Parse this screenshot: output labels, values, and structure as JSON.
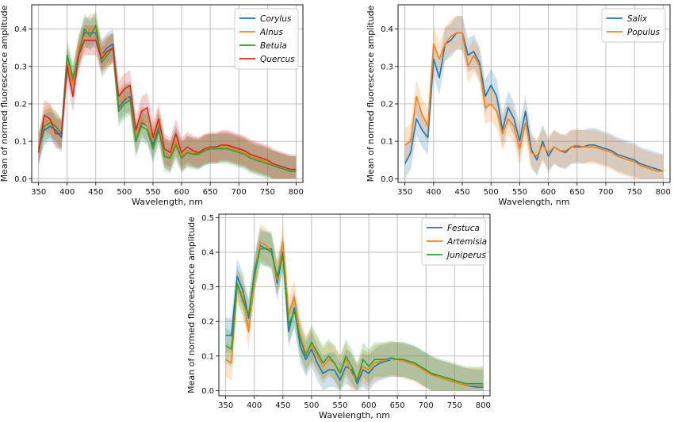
{
  "chart_data": [
    {
      "type": "line",
      "xlabel": "Wavelength, nm",
      "ylabel": "Mean of normed fluorescence amplitude",
      "xlim": [
        338,
        812
      ],
      "ylim": [
        -0.01,
        0.465
      ],
      "xticks": [
        350,
        400,
        450,
        500,
        550,
        600,
        650,
        700,
        750,
        800
      ],
      "yticks": [
        0.0,
        0.1,
        0.2,
        0.3,
        0.4
      ],
      "grid": true,
      "legend_position": "upper right",
      "x": [
        350,
        360,
        370,
        380,
        390,
        400,
        410,
        420,
        430,
        440,
        450,
        460,
        470,
        480,
        490,
        500,
        510,
        520,
        530,
        540,
        550,
        560,
        570,
        580,
        590,
        600,
        610,
        620,
        630,
        640,
        650,
        660,
        670,
        680,
        690,
        700,
        710,
        720,
        730,
        740,
        750,
        760,
        770,
        780,
        790,
        800
      ],
      "series": [
        {
          "name": "Corylus",
          "color": "#1f77b4",
          "values": [
            0.08,
            0.13,
            0.14,
            0.13,
            0.11,
            0.31,
            0.26,
            0.34,
            0.39,
            0.39,
            0.39,
            0.33,
            0.35,
            0.36,
            0.19,
            0.21,
            0.22,
            0.1,
            0.15,
            0.14,
            0.09,
            0.14,
            0.07,
            0.06,
            0.1,
            0.06,
            0.075,
            0.07,
            0.065,
            0.075,
            0.08,
            0.08,
            0.085,
            0.085,
            0.08,
            0.075,
            0.07,
            0.06,
            0.055,
            0.05,
            0.045,
            0.035,
            0.03,
            0.025,
            0.02,
            0.02
          ],
          "band": 0.04
        },
        {
          "name": "Alnus",
          "color": "#ff7f0e",
          "values": [
            0.08,
            0.15,
            0.16,
            0.14,
            0.12,
            0.32,
            0.25,
            0.35,
            0.38,
            0.4,
            0.4,
            0.33,
            0.34,
            0.35,
            0.2,
            0.22,
            0.21,
            0.11,
            0.16,
            0.14,
            0.1,
            0.15,
            0.07,
            0.06,
            0.1,
            0.06,
            0.075,
            0.07,
            0.07,
            0.08,
            0.08,
            0.08,
            0.085,
            0.085,
            0.08,
            0.075,
            0.07,
            0.06,
            0.055,
            0.05,
            0.045,
            0.035,
            0.03,
            0.025,
            0.02,
            0.02
          ],
          "band": 0.04
        },
        {
          "name": "Betula",
          "color": "#2ca02c",
          "values": [
            0.08,
            0.14,
            0.15,
            0.14,
            0.12,
            0.33,
            0.27,
            0.33,
            0.4,
            0.38,
            0.41,
            0.31,
            0.33,
            0.35,
            0.18,
            0.2,
            0.21,
            0.1,
            0.14,
            0.13,
            0.08,
            0.13,
            0.06,
            0.055,
            0.09,
            0.055,
            0.07,
            0.065,
            0.065,
            0.075,
            0.08,
            0.08,
            0.08,
            0.08,
            0.075,
            0.07,
            0.065,
            0.055,
            0.05,
            0.045,
            0.04,
            0.035,
            0.03,
            0.025,
            0.02,
            0.02
          ],
          "band": 0.04
        },
        {
          "name": "Quercus",
          "color": "#d62728",
          "values": [
            0.07,
            0.17,
            0.16,
            0.12,
            0.12,
            0.3,
            0.22,
            0.33,
            0.37,
            0.37,
            0.37,
            0.32,
            0.34,
            0.35,
            0.22,
            0.24,
            0.25,
            0.13,
            0.18,
            0.19,
            0.11,
            0.16,
            0.08,
            0.07,
            0.12,
            0.07,
            0.085,
            0.075,
            0.07,
            0.08,
            0.085,
            0.085,
            0.09,
            0.09,
            0.085,
            0.08,
            0.075,
            0.065,
            0.06,
            0.055,
            0.05,
            0.04,
            0.035,
            0.03,
            0.025,
            0.025
          ],
          "band": 0.04
        }
      ]
    },
    {
      "type": "line",
      "xlabel": "Wavelength, nm",
      "ylabel": "Mean of normed fluorescence amplitude",
      "xlim": [
        338,
        812
      ],
      "ylim": [
        -0.01,
        0.465
      ],
      "xticks": [
        350,
        400,
        450,
        500,
        550,
        600,
        650,
        700,
        750,
        800
      ],
      "yticks": [
        0.0,
        0.1,
        0.2,
        0.3,
        0.4
      ],
      "grid": true,
      "legend_position": "upper right",
      "x": [
        350,
        360,
        370,
        380,
        390,
        400,
        410,
        420,
        430,
        440,
        450,
        460,
        470,
        480,
        490,
        500,
        510,
        520,
        530,
        540,
        550,
        560,
        570,
        580,
        590,
        600,
        610,
        620,
        630,
        640,
        650,
        660,
        670,
        680,
        690,
        700,
        710,
        720,
        730,
        740,
        750,
        760,
        770,
        780,
        790,
        800
      ],
      "series": [
        {
          "name": "Salix",
          "color": "#1f77b4",
          "values": [
            0.04,
            0.07,
            0.16,
            0.13,
            0.11,
            0.32,
            0.27,
            0.36,
            0.37,
            0.39,
            0.39,
            0.33,
            0.34,
            0.31,
            0.22,
            0.25,
            0.22,
            0.13,
            0.19,
            0.16,
            0.1,
            0.18,
            0.08,
            0.05,
            0.1,
            0.06,
            0.085,
            0.075,
            0.07,
            0.085,
            0.085,
            0.085,
            0.09,
            0.09,
            0.085,
            0.08,
            0.075,
            0.065,
            0.06,
            0.055,
            0.05,
            0.04,
            0.035,
            0.03,
            0.025,
            0.02
          ],
          "band": 0.045
        },
        {
          "name": "Populus",
          "color": "#ff7f0e",
          "values": [
            0.09,
            0.1,
            0.22,
            0.17,
            0.14,
            0.36,
            0.32,
            0.36,
            0.38,
            0.39,
            0.39,
            0.3,
            0.33,
            0.3,
            0.19,
            0.2,
            0.18,
            0.12,
            0.16,
            0.14,
            0.08,
            0.15,
            0.07,
            0.06,
            0.09,
            0.07,
            0.085,
            0.075,
            0.075,
            0.085,
            0.09,
            0.085,
            0.085,
            0.085,
            0.08,
            0.075,
            0.07,
            0.06,
            0.055,
            0.05,
            0.045,
            0.035,
            0.03,
            0.025,
            0.02,
            0.02
          ],
          "band": 0.045
        }
      ]
    },
    {
      "type": "line",
      "xlabel": "Wavelength, nm",
      "ylabel": "Mean of normed fluorescence amplitude",
      "xlim": [
        338,
        812
      ],
      "ylim": [
        -0.015,
        0.51
      ],
      "xticks": [
        350,
        400,
        450,
        500,
        550,
        600,
        650,
        700,
        750,
        800
      ],
      "yticks": [
        0.0,
        0.1,
        0.2,
        0.3,
        0.4,
        0.5
      ],
      "grid": true,
      "legend_position": "upper right",
      "x": [
        350,
        360,
        370,
        380,
        390,
        400,
        410,
        420,
        430,
        440,
        450,
        460,
        470,
        480,
        490,
        500,
        510,
        520,
        530,
        540,
        550,
        560,
        570,
        580,
        590,
        600,
        610,
        620,
        630,
        640,
        650,
        660,
        670,
        680,
        690,
        700,
        710,
        720,
        730,
        740,
        750,
        760,
        770,
        780,
        790,
        800
      ],
      "series": [
        {
          "name": "Festuca",
          "color": "#1f77b4",
          "values": [
            0.16,
            0.16,
            0.33,
            0.29,
            0.21,
            0.34,
            0.42,
            0.41,
            0.41,
            0.31,
            0.4,
            0.17,
            0.24,
            0.13,
            0.09,
            0.12,
            0.08,
            0.05,
            0.06,
            0.06,
            0.03,
            0.07,
            0.06,
            0.02,
            0.06,
            0.05,
            0.07,
            0.08,
            0.085,
            0.09,
            0.09,
            0.09,
            0.085,
            0.08,
            0.07,
            0.06,
            0.05,
            0.04,
            0.035,
            0.03,
            0.025,
            0.02,
            0.015,
            0.012,
            0.01,
            0.01
          ],
          "band": 0.05
        },
        {
          "name": "Artemisia",
          "color": "#ff7f0e",
          "values": [
            0.09,
            0.08,
            0.3,
            0.28,
            0.17,
            0.32,
            0.43,
            0.42,
            0.4,
            0.32,
            0.43,
            0.22,
            0.27,
            0.16,
            0.11,
            0.13,
            0.1,
            0.07,
            0.09,
            0.08,
            0.05,
            0.09,
            0.05,
            0.03,
            0.07,
            0.06,
            0.08,
            0.085,
            0.09,
            0.09,
            0.09,
            0.085,
            0.08,
            0.075,
            0.065,
            0.055,
            0.045,
            0.04,
            0.035,
            0.03,
            0.025,
            0.02,
            0.015,
            0.015,
            0.015,
            0.015
          ],
          "band": 0.05
        },
        {
          "name": "Juniperus",
          "color": "#2ca02c",
          "values": [
            0.13,
            0.12,
            0.31,
            0.26,
            0.22,
            0.33,
            0.41,
            0.41,
            0.4,
            0.33,
            0.39,
            0.19,
            0.23,
            0.15,
            0.1,
            0.14,
            0.11,
            0.08,
            0.1,
            0.08,
            0.05,
            0.1,
            0.07,
            0.03,
            0.09,
            0.07,
            0.09,
            0.09,
            0.09,
            0.095,
            0.09,
            0.09,
            0.085,
            0.08,
            0.07,
            0.06,
            0.05,
            0.045,
            0.04,
            0.035,
            0.03,
            0.025,
            0.02,
            0.02,
            0.02,
            0.02
          ],
          "band": 0.05
        }
      ]
    }
  ]
}
